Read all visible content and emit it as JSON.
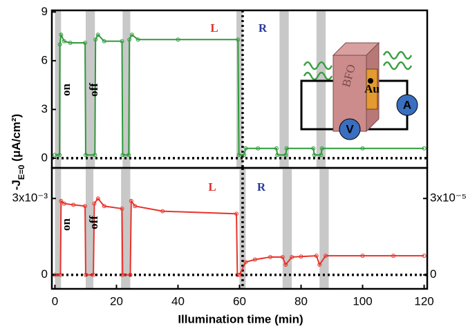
{
  "chart_data": [
    {
      "type": "line",
      "y_label": {
        "main": "-J",
        "sub": "E=0",
        "rest": " (μA/cm²)"
      },
      "xlim": [
        -1,
        121
      ],
      "ylim": [
        -0.6,
        9.1
      ],
      "yticks": [
        0,
        3,
        6,
        9
      ],
      "shaded_intervals": [
        [
          0,
          2
        ],
        [
          10,
          13
        ],
        [
          22,
          24.5
        ],
        [
          59,
          61
        ],
        [
          73,
          76
        ],
        [
          85,
          88
        ]
      ],
      "divider_x": 61,
      "series": [
        {
          "color": "#2e9a3a",
          "x": [
            0,
            1.5,
            1.6,
            2,
            3,
            5,
            9.8,
            10,
            13,
            13.2,
            14,
            16,
            21.8,
            22,
            24,
            24.2,
            25,
            27,
            40,
            59.5,
            59.8,
            61.5,
            62,
            66,
            72,
            72.3,
            75,
            75.3,
            84,
            84.3,
            86.5,
            86.8,
            100,
            120
          ],
          "values": [
            0.2,
            0.2,
            7.0,
            7.6,
            7.2,
            7.1,
            7.1,
            0.2,
            0.2,
            7.3,
            7.6,
            7.2,
            7.2,
            0.2,
            0.2,
            7.3,
            7.6,
            7.3,
            7.3,
            7.3,
            0.2,
            0.2,
            0.6,
            0.6,
            0.6,
            0.2,
            0.2,
            0.6,
            0.6,
            0.2,
            0.2,
            0.6,
            0.6,
            0.6
          ]
        }
      ],
      "annotations": [
        {
          "text": "L",
          "color": "#e0302a"
        },
        {
          "text": "R",
          "color": "#2a3a9a"
        },
        {
          "text": "on",
          "color": "#000000"
        },
        {
          "text": "off",
          "color": "#000000"
        }
      ],
      "inset": {
        "labels": [
          "BFO",
          "Au",
          "A",
          "V"
        ]
      }
    },
    {
      "type": "line",
      "x_label": "Illumination time (min)",
      "xlim": [
        -1,
        121
      ],
      "xticks": [
        0,
        20,
        40,
        60,
        80,
        100,
        120
      ],
      "ylim": [
        -0.00055,
        0.0042
      ],
      "yticks": [
        0,
        {
          "value": 0.003,
          "label": "3x10⁻³"
        }
      ],
      "y2lim": [
        -5.5e-06,
        4.2e-05
      ],
      "y2ticks": [
        0,
        {
          "value": 3e-05,
          "label": "3x10⁻⁵"
        }
      ],
      "shaded_intervals": [
        [
          0,
          2
        ],
        [
          10,
          12.5
        ],
        [
          21.5,
          24.5
        ],
        [
          60,
          62
        ],
        [
          74,
          77
        ],
        [
          86,
          89
        ]
      ],
      "divider_x": 61,
      "series": [
        {
          "color": "#e8332a",
          "x": [
            0,
            1.8,
            2,
            3,
            6,
            9.8,
            10,
            12.5,
            12.8,
            14,
            16,
            21.8,
            22,
            24.5,
            24.8,
            26,
            35,
            59,
            59.3
          ],
          "values": [
            0,
            0,
            0.0029,
            0.0028,
            0.00275,
            0.0027,
            0,
            0,
            0.0028,
            0.003,
            0.0027,
            0.0026,
            0,
            0,
            0.0029,
            0.0027,
            0.0025,
            0.0024,
            0
          ]
        },
        {
          "color": "#e8332a",
          "axis": "y2",
          "x": [
            60,
            62,
            65,
            70,
            74,
            75,
            77,
            80,
            85,
            86,
            88,
            100,
            110,
            120
          ],
          "values": [
            0,
            5e-06,
            6e-06,
            7e-06,
            7e-06,
            4e-06,
            7e-06,
            7.2e-06,
            7.5e-06,
            4e-06,
            7.5e-06,
            7.5e-06,
            7.5e-06,
            7.5e-06
          ]
        }
      ],
      "annotations": [
        {
          "text": "L",
          "color": "#e0302a"
        },
        {
          "text": "R",
          "color": "#2a3a9a"
        },
        {
          "text": "on",
          "color": "#000000"
        },
        {
          "text": "off",
          "color": "#000000"
        }
      ]
    }
  ]
}
